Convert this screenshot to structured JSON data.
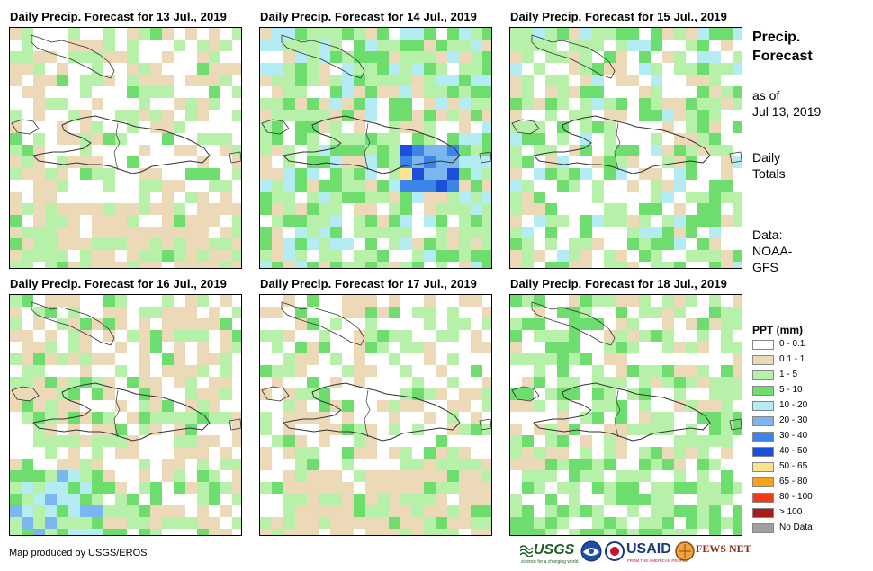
{
  "panels": [
    {
      "title": "Daily Precip. Forecast for 13 Jul., 2019",
      "seed": 11,
      "profile": "dry"
    },
    {
      "title": "Daily Precip. Forecast for 14 Jul., 2019",
      "seed": 23,
      "profile": "wet"
    },
    {
      "title": "Daily Precip. Forecast for 15 Jul., 2019",
      "seed": 37,
      "profile": "medium"
    },
    {
      "title": "Daily Precip. Forecast for 16 Jul., 2019",
      "seed": 41,
      "profile": "medium-south"
    },
    {
      "title": "Daily Precip. Forecast for 17 Jul., 2019",
      "seed": 53,
      "profile": "dry"
    },
    {
      "title": "Daily Precip. Forecast for 18 Jul., 2019",
      "seed": 67,
      "profile": "green"
    }
  ],
  "sidebar": {
    "title_line1": "Precip.",
    "title_line2": "Forecast",
    "asof_line1": "as of",
    "asof_line2": "Jul 13, 2019",
    "totals_line1": "Daily",
    "totals_line2": "Totals",
    "data_line1": "Data:",
    "data_line2": "NOAA-",
    "data_line3": "GFS"
  },
  "legend": {
    "title": "PPT (mm)",
    "items": [
      {
        "label": "0 - 0.1",
        "color": "#ffffff"
      },
      {
        "label": "0.1 - 1",
        "color": "#ecd9b8"
      },
      {
        "label": "1 - 5",
        "color": "#b7f0a8"
      },
      {
        "label": "5 - 10",
        "color": "#6ddd6d"
      },
      {
        "label": "10 - 20",
        "color": "#b4ecf4"
      },
      {
        "label": "20 - 30",
        "color": "#7ab6f0"
      },
      {
        "label": "30 - 40",
        "color": "#3d84e8"
      },
      {
        "label": "40 - 50",
        "color": "#1d50d8"
      },
      {
        "label": "50 - 65",
        "color": "#f8e58c"
      },
      {
        "label": "65 - 80",
        "color": "#f7a21a"
      },
      {
        "label": "80 - 100",
        "color": "#f03a1a"
      },
      {
        "label": "> 100",
        "color": "#a51d1d"
      },
      {
        "label": "No Data",
        "color": "#a0a0a0"
      }
    ]
  },
  "credit": "Map produced by USGS/EROS",
  "logos": {
    "usgs": "USGS",
    "usgs_tag": "science for a changing world",
    "noaa": "NOAA",
    "usaid": "USAID",
    "usaid_tag": "FROM THE AMERICAN PEOPLE",
    "fewsnet": "FEWS NET"
  }
}
